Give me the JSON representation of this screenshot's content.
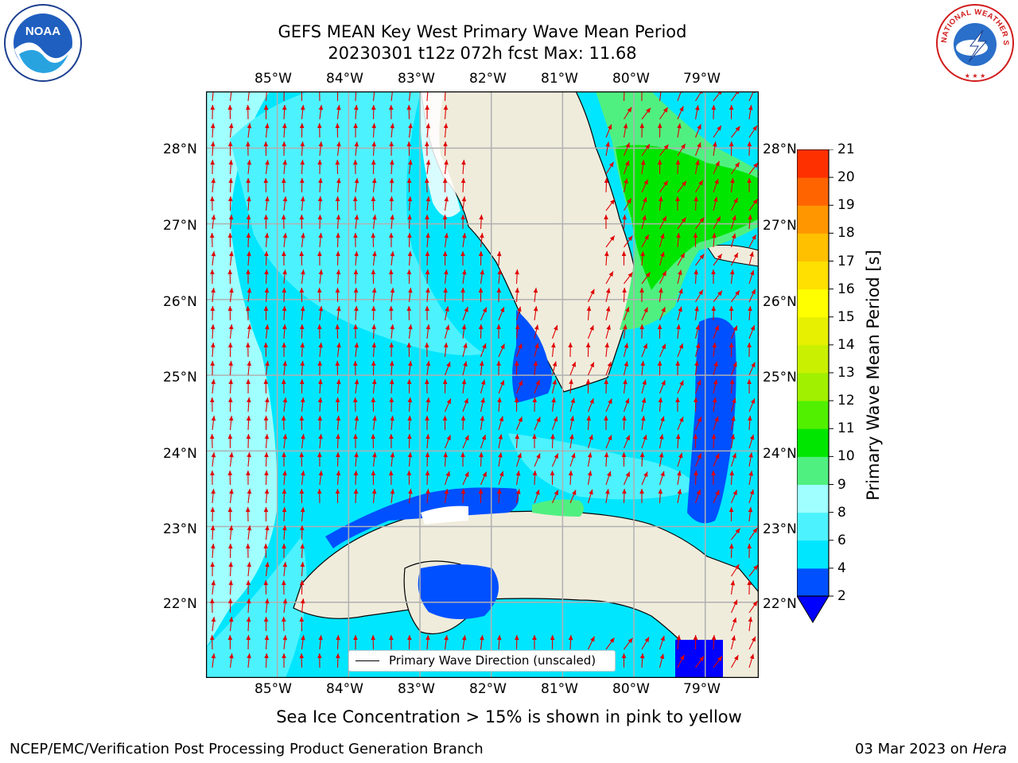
{
  "header": {
    "title_line1": "GEFS MEAN Key West Primary Wave Mean Period",
    "title_line2": "20230301 t12z 072h fcst   Max: 11.68"
  },
  "logos": {
    "left": {
      "icon": "noaa-logo-icon",
      "text": "NOAA"
    },
    "right": {
      "icon": "nws-logo-icon",
      "text": "NATIONAL WEATHER SERVICE"
    }
  },
  "map": {
    "lon_ticks": [
      "85°W",
      "84°W",
      "83°W",
      "82°W",
      "81°W",
      "80°W",
      "79°W"
    ],
    "lat_ticks": [
      "28°N",
      "27°N",
      "26°N",
      "25°N",
      "24°N",
      "23°N",
      "22°N"
    ],
    "lon_range": [
      -86.0,
      -78.25
    ],
    "lat_range": [
      21.0,
      28.75
    ],
    "grid": true,
    "land_color": "#efecdc",
    "grid_color": "#b0b0b0",
    "arrow_color": "#e00000",
    "legend": {
      "label": "Primary Wave Direction (unscaled)",
      "placement": "lower-center"
    }
  },
  "colorbar": {
    "label": "Primary Wave Mean Period [s]",
    "ticks": [
      "2",
      "4",
      "6",
      "8",
      "9",
      "10",
      "11",
      "12",
      "13",
      "14",
      "15",
      "16",
      "17",
      "18",
      "19",
      "20",
      "21"
    ],
    "colors": [
      "#0050ff",
      "#00e6ff",
      "#4df2ff",
      "#a0ffff",
      "#50f080",
      "#00e600",
      "#50f000",
      "#a0f000",
      "#c8f000",
      "#e6f000",
      "#ffff00",
      "#ffe000",
      "#ffc000",
      "#ff9600",
      "#ff6400",
      "#ff3000"
    ],
    "under_color": "#0000ff"
  },
  "chart_data": {
    "type": "heatmap",
    "title": "GEFS MEAN Key West Primary Wave Mean Period",
    "subtitle": "20230301 t12z 072h fcst   Max: 11.68",
    "variable": "Primary Wave Mean Period [s]",
    "max": 11.68,
    "dominant_direction": "northward",
    "colorbar_range": [
      2,
      21
    ]
  },
  "subtitle": "Sea Ice Concentration > 15% is shown in pink to yellow",
  "footer": {
    "left": "NCEP/EMC/Verification Post Processing Product Generation Branch",
    "right_date": "03 Mar 2023 on",
    "right_host": "Hera"
  }
}
